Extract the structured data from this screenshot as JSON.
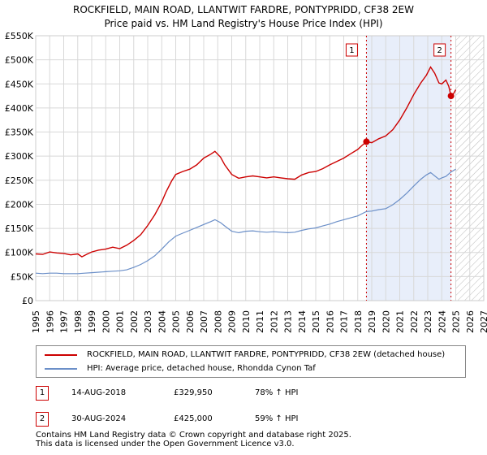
{
  "title_line1": "ROCKFIELD, MAIN ROAD, LLANTWIT FARDRE, PONTYPRIDD, CF38 2EW",
  "title_line2": "Price paid vs. HM Land Registry's House Price Index (HPI)",
  "colors": {
    "property_line": "#cc0000",
    "hpi_line": "#6b8fc8",
    "highlight_band": "#e8eefa",
    "annotation_border": "#cc0000",
    "grid": "#d8d8d8"
  },
  "chart_data": {
    "type": "line",
    "ylim": [
      0,
      550000
    ],
    "xlim": [
      1995,
      2027
    ],
    "yticks": [
      {
        "value": 0,
        "label": "£0"
      },
      {
        "value": 50000,
        "label": "£50K"
      },
      {
        "value": 100000,
        "label": "£100K"
      },
      {
        "value": 150000,
        "label": "£150K"
      },
      {
        "value": 200000,
        "label": "£200K"
      },
      {
        "value": 250000,
        "label": "£250K"
      },
      {
        "value": 300000,
        "label": "£300K"
      },
      {
        "value": 350000,
        "label": "£350K"
      },
      {
        "value": 400000,
        "label": "£400K"
      },
      {
        "value": 450000,
        "label": "£450K"
      },
      {
        "value": 500000,
        "label": "£500K"
      },
      {
        "value": 550000,
        "label": "£550K"
      }
    ],
    "xticks": [
      "1995",
      "1996",
      "1997",
      "1998",
      "1999",
      "2000",
      "2001",
      "2002",
      "2003",
      "2004",
      "2005",
      "2006",
      "2007",
      "2008",
      "2009",
      "2010",
      "2011",
      "2012",
      "2013",
      "2014",
      "2015",
      "2016",
      "2017",
      "2018",
      "2019",
      "2020",
      "2021",
      "2022",
      "2023",
      "2024",
      "2025",
      "2026",
      "2027"
    ],
    "highlight_range": [
      2018.62,
      2024.66
    ],
    "forecast_from": 2025.0,
    "series": [
      {
        "name": "ROCKFIELD, MAIN ROAD, LLANTWIT FARDRE, PONTYPRIDD, CF38 2EW (detached house)",
        "points": [
          [
            1995.0,
            97000
          ],
          [
            1995.5,
            96000
          ],
          [
            1996.0,
            101000
          ],
          [
            1996.5,
            99000
          ],
          [
            1997.0,
            98000
          ],
          [
            1997.5,
            95000
          ],
          [
            1998.0,
            97000
          ],
          [
            1998.3,
            91000
          ],
          [
            1998.7,
            97000
          ],
          [
            1999.0,
            101000
          ],
          [
            1999.5,
            105000
          ],
          [
            2000.0,
            107000
          ],
          [
            2000.5,
            111000
          ],
          [
            2001.0,
            108000
          ],
          [
            2001.5,
            115000
          ],
          [
            2002.0,
            125000
          ],
          [
            2002.5,
            137000
          ],
          [
            2003.0,
            156000
          ],
          [
            2003.5,
            178000
          ],
          [
            2004.0,
            205000
          ],
          [
            2004.3,
            225000
          ],
          [
            2004.7,
            248000
          ],
          [
            2005.0,
            262000
          ],
          [
            2005.5,
            268000
          ],
          [
            2006.0,
            273000
          ],
          [
            2006.5,
            282000
          ],
          [
            2007.0,
            296000
          ],
          [
            2007.5,
            304000
          ],
          [
            2007.8,
            310000
          ],
          [
            2008.2,
            298000
          ],
          [
            2008.5,
            282000
          ],
          [
            2009.0,
            262000
          ],
          [
            2009.5,
            254000
          ],
          [
            2010.0,
            257000
          ],
          [
            2010.5,
            259000
          ],
          [
            2011.0,
            257000
          ],
          [
            2011.5,
            255000
          ],
          [
            2012.0,
            257000
          ],
          [
            2012.5,
            255000
          ],
          [
            2013.0,
            253000
          ],
          [
            2013.5,
            252000
          ],
          [
            2014.0,
            261000
          ],
          [
            2014.5,
            266000
          ],
          [
            2015.0,
            268000
          ],
          [
            2015.5,
            274000
          ],
          [
            2016.0,
            282000
          ],
          [
            2016.5,
            289000
          ],
          [
            2017.0,
            296000
          ],
          [
            2017.5,
            305000
          ],
          [
            2018.0,
            314000
          ],
          [
            2018.3,
            322000
          ],
          [
            2018.62,
            329950
          ],
          [
            2019.0,
            328000
          ],
          [
            2019.5,
            336000
          ],
          [
            2020.0,
            342000
          ],
          [
            2020.5,
            355000
          ],
          [
            2021.0,
            375000
          ],
          [
            2021.5,
            400000
          ],
          [
            2022.0,
            428000
          ],
          [
            2022.5,
            452000
          ],
          [
            2022.9,
            468000
          ],
          [
            2023.2,
            485000
          ],
          [
            2023.5,
            472000
          ],
          [
            2023.8,
            452000
          ],
          [
            2024.0,
            450000
          ],
          [
            2024.3,
            458000
          ],
          [
            2024.5,
            445000
          ],
          [
            2024.66,
            425000
          ],
          [
            2024.85,
            430000
          ],
          [
            2025.0,
            438000
          ]
        ]
      },
      {
        "name": "HPI: Average price, detached house, Rhondda Cynon Taf",
        "points": [
          [
            1995.0,
            57000
          ],
          [
            1995.5,
            56000
          ],
          [
            1996.0,
            57000
          ],
          [
            1996.5,
            57000
          ],
          [
            1997.0,
            56000
          ],
          [
            1997.5,
            56000
          ],
          [
            1998.0,
            56000
          ],
          [
            1998.5,
            57000
          ],
          [
            1999.0,
            58000
          ],
          [
            1999.5,
            59000
          ],
          [
            2000.0,
            60000
          ],
          [
            2000.5,
            61000
          ],
          [
            2001.0,
            62000
          ],
          [
            2001.5,
            64000
          ],
          [
            2002.0,
            69000
          ],
          [
            2002.5,
            75000
          ],
          [
            2003.0,
            83000
          ],
          [
            2003.5,
            93000
          ],
          [
            2004.0,
            107000
          ],
          [
            2004.5,
            122000
          ],
          [
            2005.0,
            134000
          ],
          [
            2005.5,
            140000
          ],
          [
            2006.0,
            146000
          ],
          [
            2006.5,
            152000
          ],
          [
            2007.0,
            158000
          ],
          [
            2007.5,
            164000
          ],
          [
            2007.8,
            168000
          ],
          [
            2008.2,
            162000
          ],
          [
            2008.5,
            155000
          ],
          [
            2009.0,
            144000
          ],
          [
            2009.5,
            141000
          ],
          [
            2010.0,
            144000
          ],
          [
            2010.5,
            145000
          ],
          [
            2011.0,
            143000
          ],
          [
            2011.5,
            142000
          ],
          [
            2012.0,
            143000
          ],
          [
            2012.5,
            142000
          ],
          [
            2013.0,
            141000
          ],
          [
            2013.5,
            142000
          ],
          [
            2014.0,
            146000
          ],
          [
            2014.5,
            149000
          ],
          [
            2015.0,
            151000
          ],
          [
            2015.5,
            155000
          ],
          [
            2016.0,
            159000
          ],
          [
            2016.5,
            164000
          ],
          [
            2017.0,
            168000
          ],
          [
            2017.5,
            172000
          ],
          [
            2018.0,
            176000
          ],
          [
            2018.62,
            185000
          ],
          [
            2019.0,
            186000
          ],
          [
            2019.5,
            189000
          ],
          [
            2020.0,
            191000
          ],
          [
            2020.5,
            199000
          ],
          [
            2021.0,
            210000
          ],
          [
            2021.5,
            223000
          ],
          [
            2022.0,
            238000
          ],
          [
            2022.5,
            252000
          ],
          [
            2022.9,
            261000
          ],
          [
            2023.2,
            266000
          ],
          [
            2023.5,
            259000
          ],
          [
            2023.8,
            252000
          ],
          [
            2024.0,
            255000
          ],
          [
            2024.3,
            258000
          ],
          [
            2024.66,
            267000
          ],
          [
            2025.0,
            273000
          ]
        ]
      }
    ],
    "markers": [
      {
        "label": "1",
        "x": 2018.62,
        "y": 329950
      },
      {
        "label": "2",
        "x": 2024.66,
        "y": 425000
      }
    ]
  },
  "legend": {
    "property_label": "ROCKFIELD, MAIN ROAD, LLANTWIT FARDRE, PONTYPRIDD, CF38 2EW (detached house)",
    "hpi_label": "HPI: Average price, detached house, Rhondda Cynon Taf"
  },
  "annotations": [
    {
      "num": "1",
      "date": "14-AUG-2018",
      "price": "£329,950",
      "hpi": "78% ↑ HPI"
    },
    {
      "num": "2",
      "date": "30-AUG-2024",
      "price": "£425,000",
      "hpi": "59% ↑ HPI"
    }
  ],
  "footer_line1": "Contains HM Land Registry data © Crown copyright and database right 2025.",
  "footer_line2": "This data is licensed under the Open Government Licence v3.0."
}
